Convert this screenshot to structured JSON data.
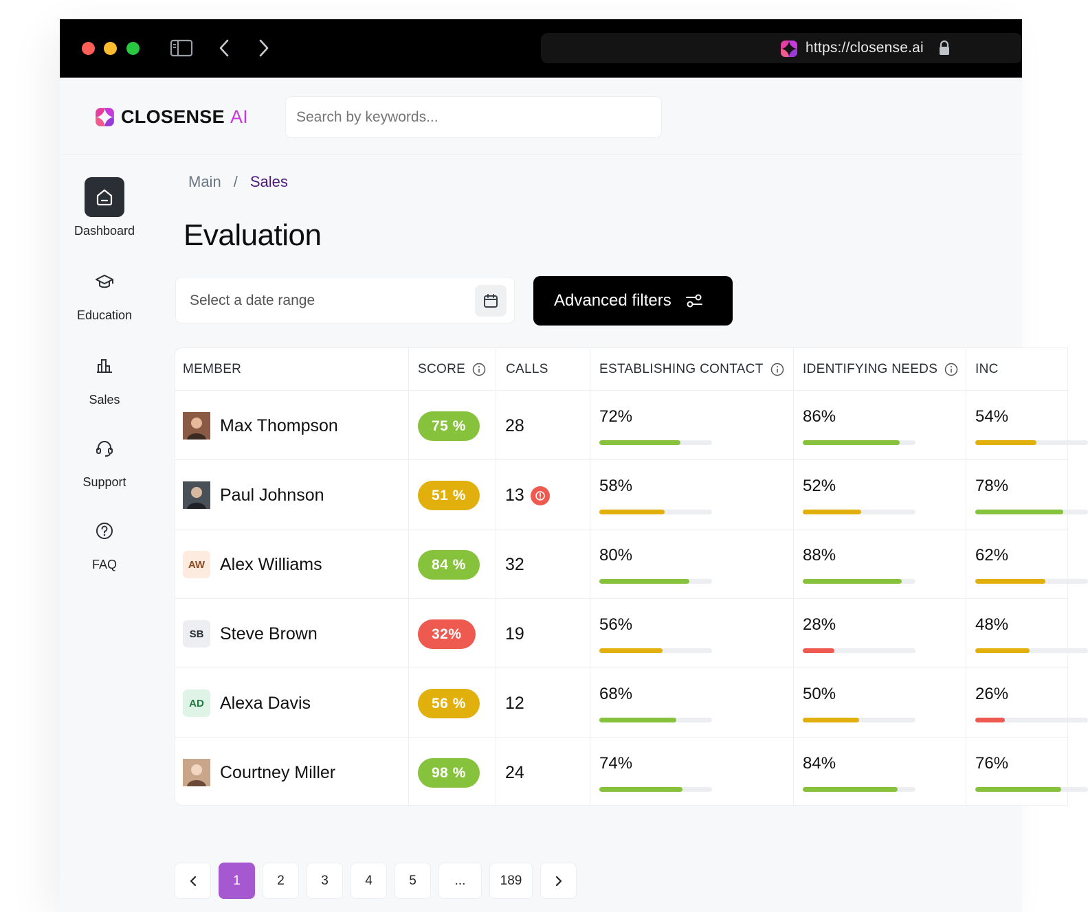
{
  "browser": {
    "url": "https://closense.ai",
    "icons": [
      "sidebar-toggle-icon",
      "back-arrow-icon",
      "forward-arrow-icon",
      "lock-icon"
    ]
  },
  "app": {
    "logo_text": "CLOSENSE",
    "logo_ai": "AI",
    "brand_color": "#c53ad9",
    "search_placeholder": "Search by keywords..."
  },
  "sidebar": {
    "items": [
      {
        "label": "Dashboard",
        "icon": "home-icon",
        "active": true
      },
      {
        "label": "Education",
        "icon": "graduation-cap-icon",
        "active": false
      },
      {
        "label": "Sales",
        "icon": "bar-chart-icon",
        "active": false
      },
      {
        "label": "Support",
        "icon": "headset-icon",
        "active": false
      },
      {
        "label": "FAQ",
        "icon": "question-circle-icon",
        "active": false
      }
    ]
  },
  "breadcrumb": {
    "main": "Main",
    "separator": "/",
    "current": "Sales"
  },
  "page": {
    "title": "Evaluation",
    "date_placeholder": "Select a date range",
    "advanced_filters": "Advanced filters"
  },
  "table": {
    "headers": {
      "member": "MEMBER",
      "score": "SCORE",
      "calls": "CALLS",
      "establishing": "ESTABLISHING CONTACT",
      "identifying": "IDENTIFYING NEEDS",
      "inc": "INC"
    },
    "colors": {
      "green": "#87c23c",
      "yellow": "#e2b00c",
      "red": "#ee5a4f"
    },
    "rows": [
      {
        "name": "Max Thompson",
        "initials": "",
        "avatar": "photo",
        "score": "75 %",
        "score_color": "green",
        "calls": "28",
        "warning": false,
        "est": {
          "label": "72%",
          "value": 0.72,
          "color": "green"
        },
        "idn": {
          "label": "86%",
          "value": 0.86,
          "color": "green"
        },
        "inc": {
          "label": "54%",
          "value": 0.54,
          "color": "yellow"
        }
      },
      {
        "name": "Paul Johnson",
        "initials": "",
        "avatar": "photo",
        "score": "51 %",
        "score_color": "yellow",
        "calls": "13",
        "warning": true,
        "est": {
          "label": "58%",
          "value": 0.58,
          "color": "yellow"
        },
        "idn": {
          "label": "52%",
          "value": 0.52,
          "color": "yellow"
        },
        "inc": {
          "label": "78%",
          "value": 0.78,
          "color": "green"
        }
      },
      {
        "name": "Alex Williams",
        "initials": "AW",
        "avatar": "initials",
        "avatar_bg": "#fdebe0",
        "avatar_fg": "#8a4a1c",
        "score": "84 %",
        "score_color": "green",
        "calls": "32",
        "warning": false,
        "est": {
          "label": "80%",
          "value": 0.8,
          "color": "green"
        },
        "idn": {
          "label": "88%",
          "value": 0.88,
          "color": "green"
        },
        "inc": {
          "label": "62%",
          "value": 0.62,
          "color": "yellow"
        }
      },
      {
        "name": "Steve Brown",
        "initials": "SB",
        "avatar": "initials",
        "avatar_bg": "#eceef1",
        "avatar_fg": "#2b2f36",
        "score": "32%",
        "score_color": "red",
        "calls": "19",
        "warning": false,
        "est": {
          "label": "56%",
          "value": 0.56,
          "color": "yellow"
        },
        "idn": {
          "label": "28%",
          "value": 0.28,
          "color": "red"
        },
        "inc": {
          "label": "48%",
          "value": 0.48,
          "color": "yellow"
        }
      },
      {
        "name": "Alexa Davis",
        "initials": "AD",
        "avatar": "initials",
        "avatar_bg": "#dff3e6",
        "avatar_fg": "#1e7a42",
        "score": "56 %",
        "score_color": "yellow",
        "calls": "12",
        "warning": false,
        "est": {
          "label": "68%",
          "value": 0.68,
          "color": "green"
        },
        "idn": {
          "label": "50%",
          "value": 0.5,
          "color": "yellow"
        },
        "inc": {
          "label": "26%",
          "value": 0.26,
          "color": "red"
        }
      },
      {
        "name": "Courtney Miller",
        "initials": "",
        "avatar": "photo",
        "score": "98 %",
        "score_color": "green",
        "calls": "24",
        "warning": false,
        "est": {
          "label": "74%",
          "value": 0.74,
          "color": "green"
        },
        "idn": {
          "label": "84%",
          "value": 0.84,
          "color": "green"
        },
        "inc": {
          "label": "76%",
          "value": 0.76,
          "color": "green"
        }
      }
    ]
  },
  "pagination": {
    "pages": [
      "1",
      "2",
      "3",
      "4",
      "5",
      "...",
      "189"
    ],
    "current": "1"
  }
}
